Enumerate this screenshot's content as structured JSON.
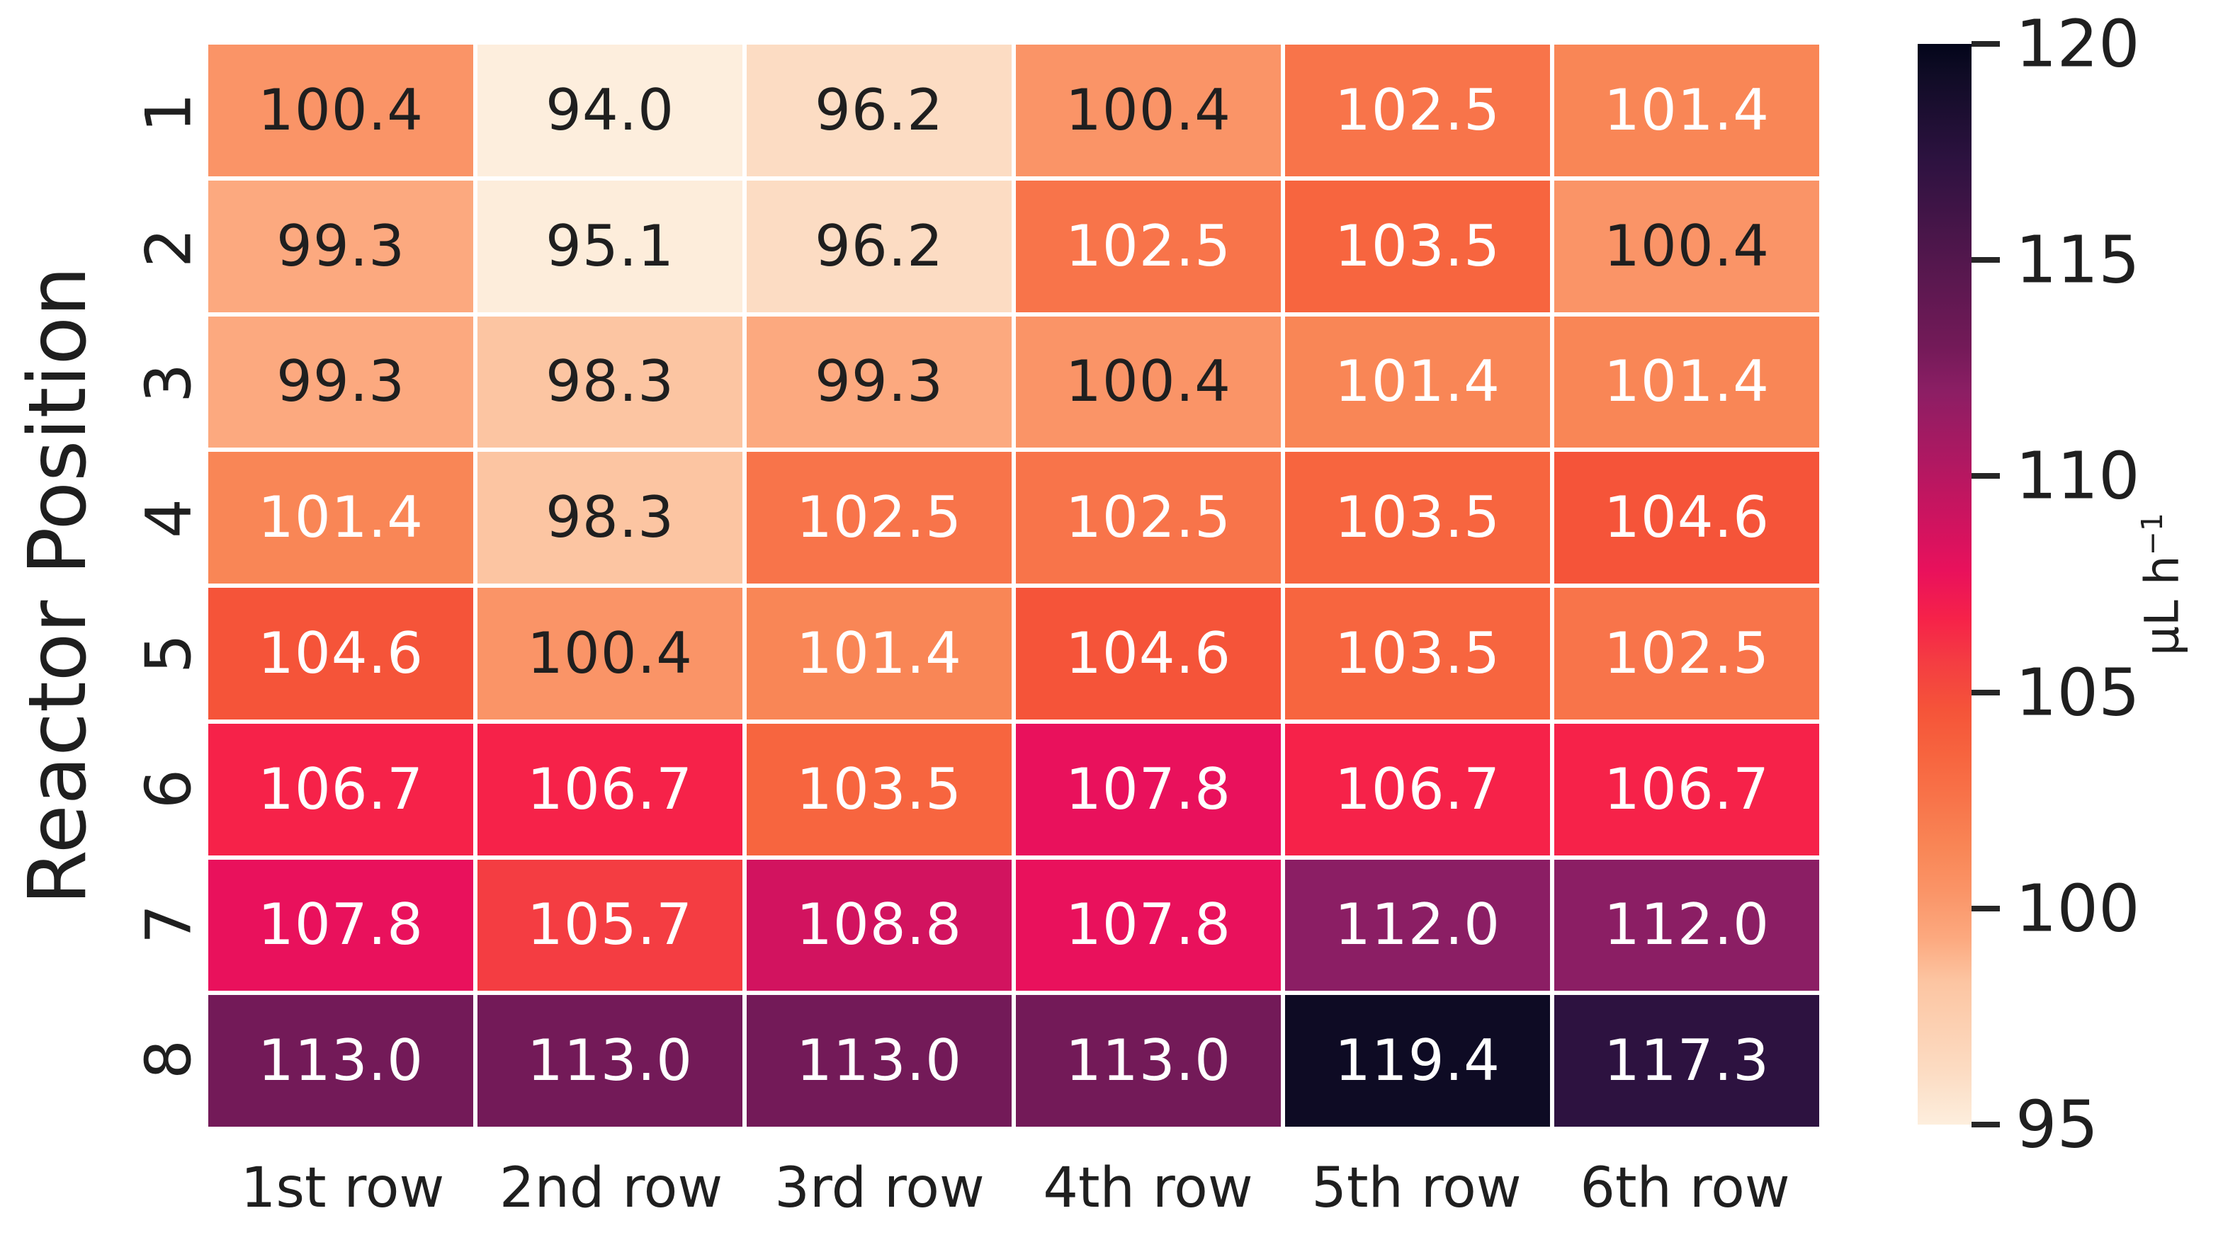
{
  "chart_data": {
    "type": "heatmap",
    "title": "",
    "xlabel": "",
    "ylabel": "Reactor Position",
    "x_categories": [
      "1st row",
      "2nd row",
      "3rd row",
      "4th row",
      "5th row",
      "6th row"
    ],
    "y_categories": [
      "1",
      "2",
      "3",
      "4",
      "5",
      "6",
      "7",
      "8"
    ],
    "values": [
      [
        100.4,
        94.0,
        96.2,
        100.4,
        102.5,
        101.4
      ],
      [
        99.3,
        95.1,
        96.2,
        102.5,
        103.5,
        100.4
      ],
      [
        99.3,
        98.3,
        99.3,
        100.4,
        101.4,
        101.4
      ],
      [
        101.4,
        98.3,
        102.5,
        102.5,
        103.5,
        104.6
      ],
      [
        104.6,
        100.4,
        101.4,
        104.6,
        103.5,
        102.5
      ],
      [
        106.7,
        106.7,
        103.5,
        107.8,
        106.7,
        106.7
      ],
      [
        107.8,
        105.7,
        108.8,
        107.8,
        112.0,
        112.0
      ],
      [
        113.0,
        113.0,
        113.0,
        113.0,
        119.4,
        117.3
      ]
    ],
    "value_format_decimals": 1,
    "annotation_text_color_dark": "#1f1f1f",
    "annotation_text_color_light": "#ffffff",
    "annotation_white_text_above": 101,
    "grid_line_color": "#ffffff",
    "colorbar": {
      "label": "μL h⁻¹",
      "label_main": "μL h",
      "label_sup": "−1",
      "vmin": 95,
      "vmax": 120,
      "ticks": [
        95,
        100,
        105,
        110,
        115,
        120
      ],
      "legend_position": "right"
    },
    "colormap_name": "rocket_r",
    "colormap_stops": [
      {
        "v": 95.0,
        "c": "#fdeedd"
      },
      {
        "v": 96.2,
        "c": "#fcdcc3"
      },
      {
        "v": 98.3,
        "c": "#fcc5a2"
      },
      {
        "v": 99.3,
        "c": "#fca97f"
      },
      {
        "v": 100.4,
        "c": "#fa9467"
      },
      {
        "v": 101.4,
        "c": "#f98656"
      },
      {
        "v": 102.5,
        "c": "#f8744a"
      },
      {
        "v": 103.5,
        "c": "#f7653f"
      },
      {
        "v": 104.6,
        "c": "#f55439"
      },
      {
        "v": 105.7,
        "c": "#f43d42"
      },
      {
        "v": 106.7,
        "c": "#f62249"
      },
      {
        "v": 107.8,
        "c": "#e9115c"
      },
      {
        "v": 108.8,
        "c": "#d2135f"
      },
      {
        "v": 110.0,
        "c": "#b71761"
      },
      {
        "v": 112.0,
        "c": "#8b1e64"
      },
      {
        "v": 113.0,
        "c": "#731a58"
      },
      {
        "v": 115.0,
        "c": "#53174d"
      },
      {
        "v": 117.3,
        "c": "#2d1240"
      },
      {
        "v": 119.4,
        "c": "#0e0b24"
      },
      {
        "v": 120.0,
        "c": "#03051a"
      }
    ]
  }
}
